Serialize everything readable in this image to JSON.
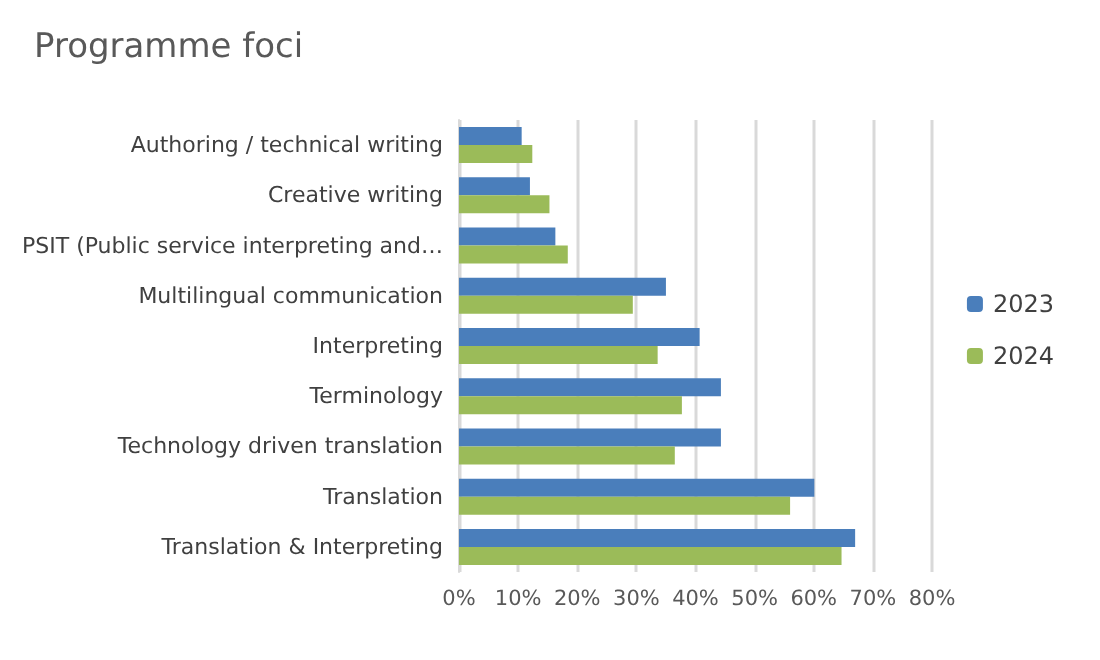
{
  "chart_data": {
    "type": "bar",
    "orientation": "horizontal",
    "title": "Programme foci",
    "categories": [
      "Authoring / technical writing",
      "Creative writing",
      "PSIT (Public service interpreting and…",
      "Multilingual communication",
      "Interpreting",
      "Terminology",
      "Technology driven translation",
      "Translation",
      "Translation & Interpreting"
    ],
    "series": [
      {
        "name": "2023",
        "color": "#4a7ebb",
        "values": [
          10.6,
          12.0,
          16.3,
          35.0,
          40.7,
          44.3,
          44.3,
          60.1,
          67.0
        ]
      },
      {
        "name": "2024",
        "color": "#9bbb59",
        "values": [
          12.4,
          15.3,
          18.4,
          29.4,
          33.6,
          37.7,
          36.5,
          56.0,
          64.7
        ]
      }
    ],
    "xlim": [
      0,
      80
    ],
    "xticks": [
      {
        "value": 0,
        "label": "0%"
      },
      {
        "value": 10,
        "label": "10%"
      },
      {
        "value": 20,
        "label": "20%"
      },
      {
        "value": 30,
        "label": "30%"
      },
      {
        "value": 40,
        "label": "40%"
      },
      {
        "value": 50,
        "label": "50%"
      },
      {
        "value": 60,
        "label": "60%"
      },
      {
        "value": 70,
        "label": "70%"
      },
      {
        "value": 80,
        "label": "80%"
      }
    ],
    "grid": "x",
    "legend": "right"
  }
}
